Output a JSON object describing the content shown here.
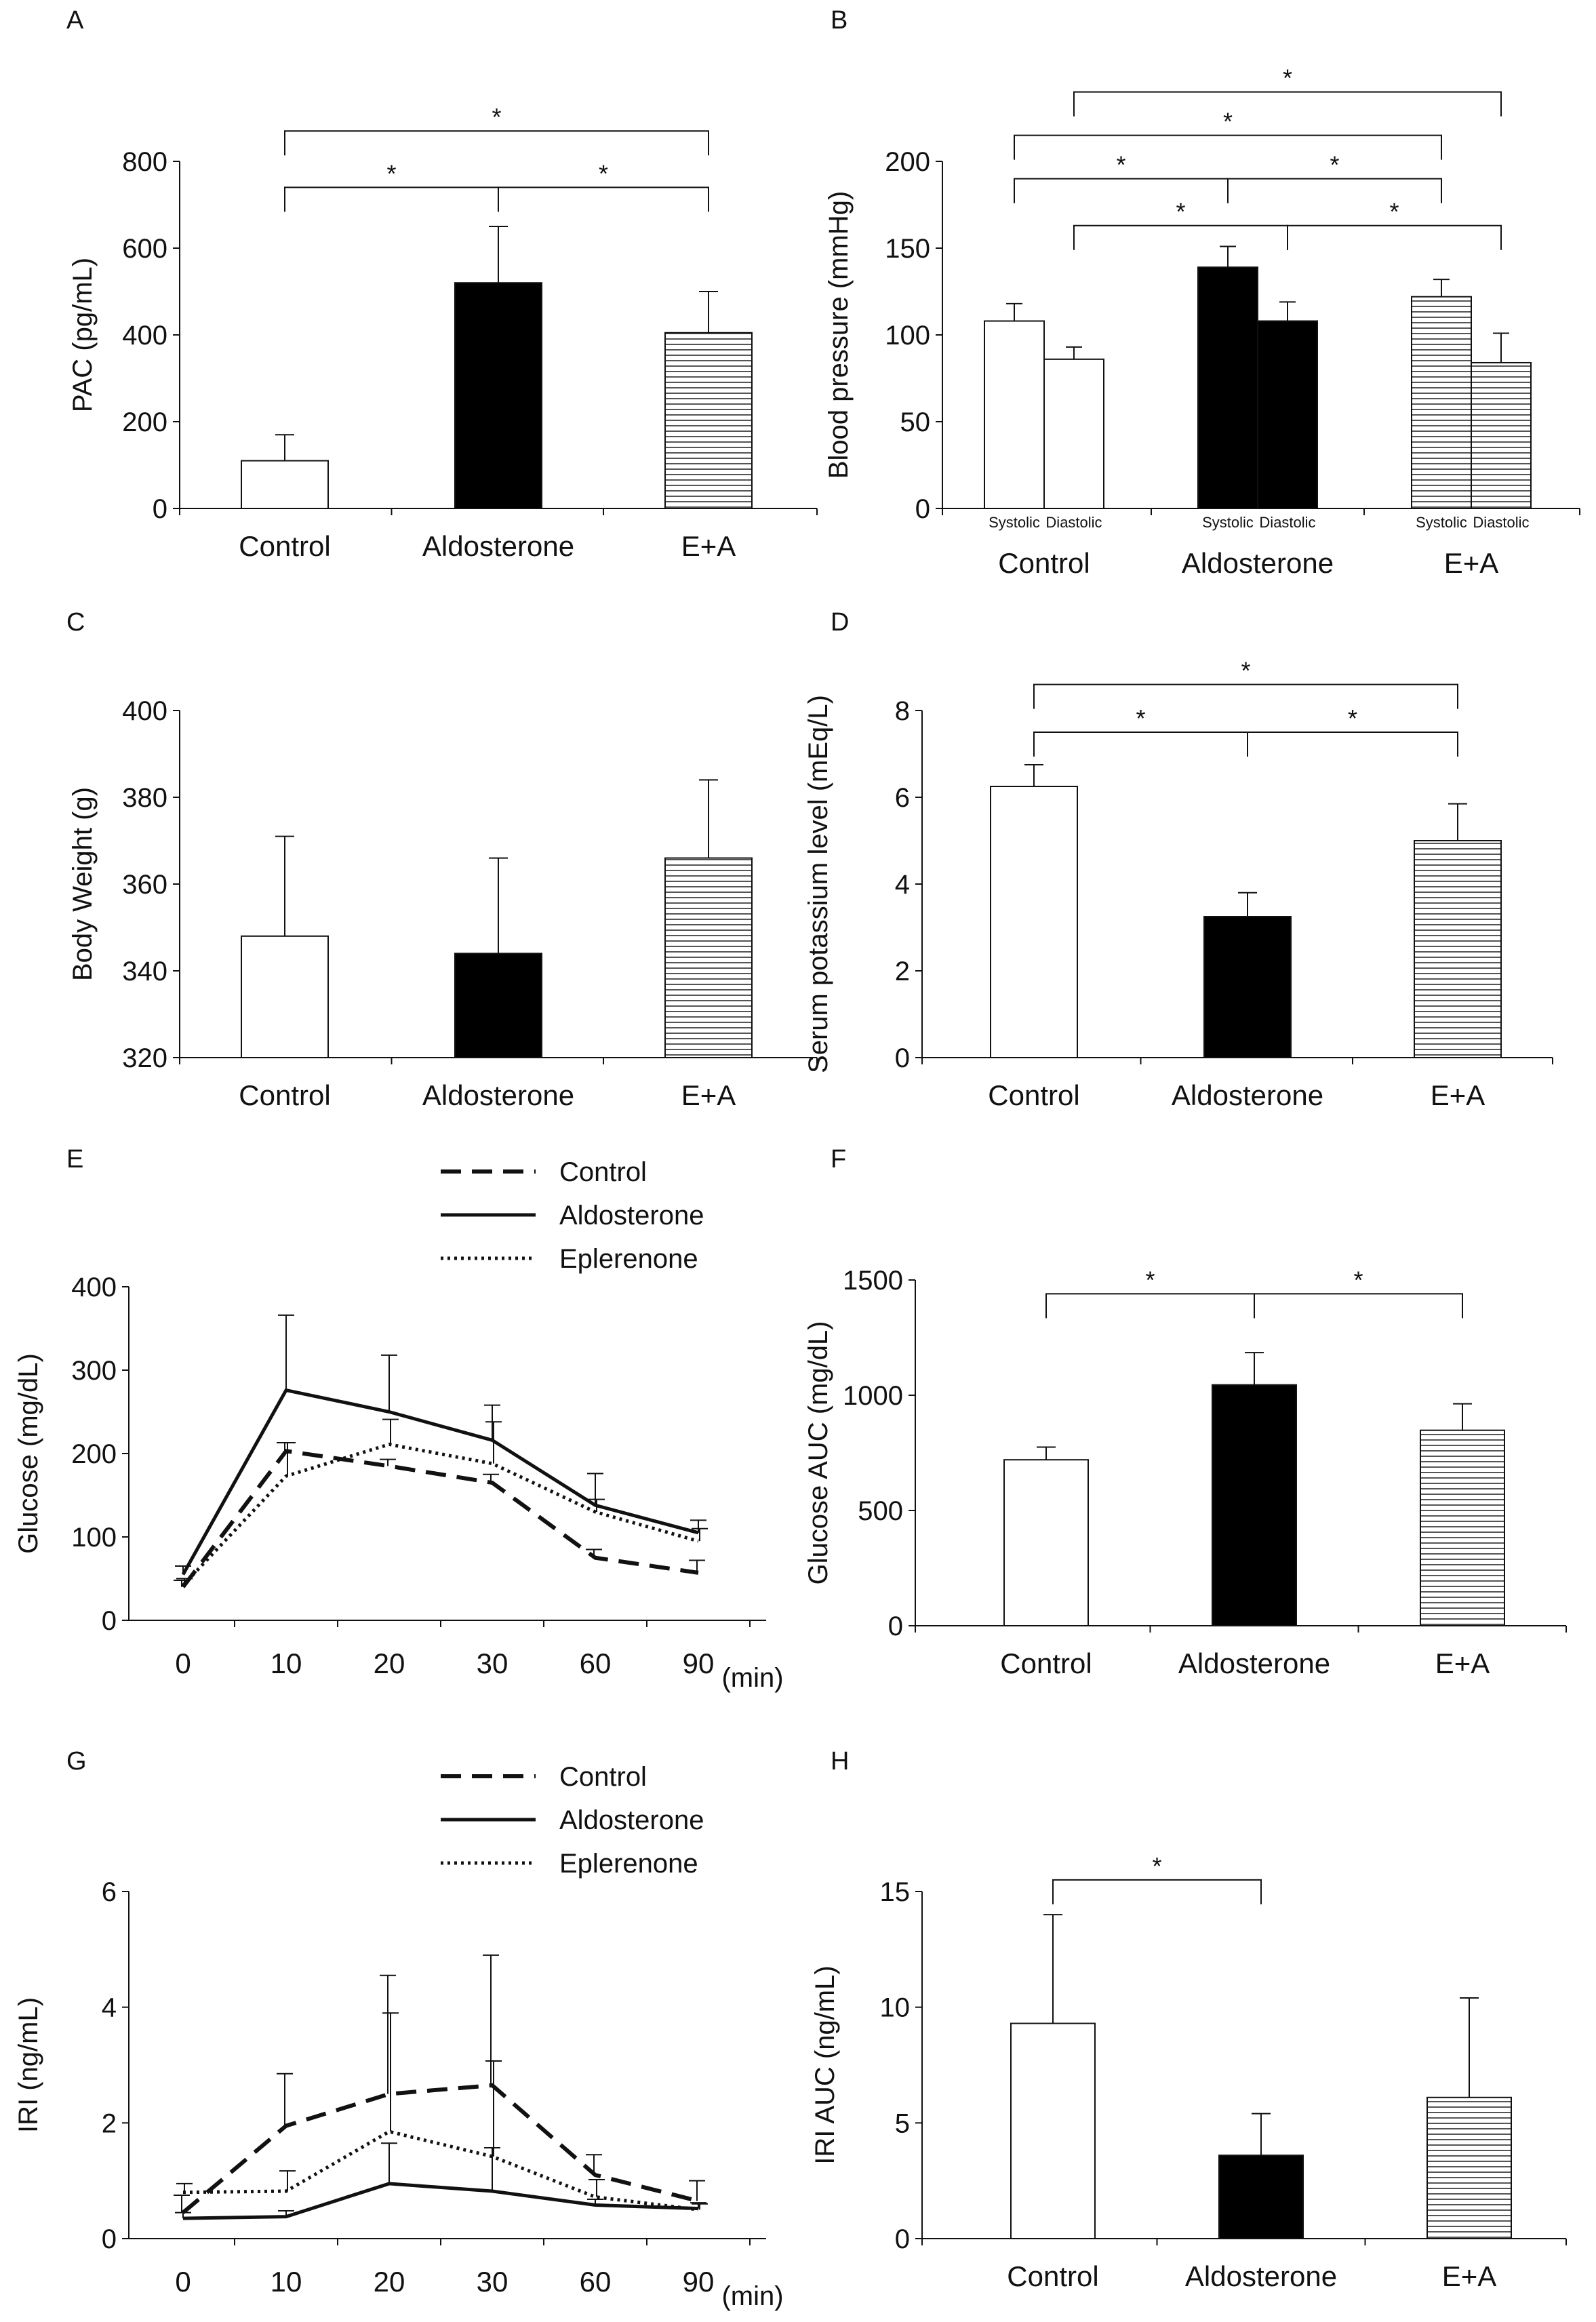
{
  "figure": {
    "colors": {
      "ink": "#111111",
      "white": "#ffffff",
      "black": "#000000",
      "hatch": "#555555"
    }
  },
  "chart_data": [
    {
      "id": "A",
      "panel_label": "A",
      "type": "bar",
      "ylabel": "PAC (pg/mL)",
      "ylim": [
        0,
        800
      ],
      "yticks": [
        0,
        200,
        400,
        600,
        800
      ],
      "categories": [
        "Control",
        "Aldosterone",
        "E+A"
      ],
      "values": [
        110,
        520,
        405
      ],
      "errors": [
        60,
        130,
        95
      ],
      "fills": [
        "white",
        "black",
        "hatch"
      ],
      "significance": [
        {
          "from": 0,
          "to": 1,
          "y": 740,
          "label": "*"
        },
        {
          "from": 1,
          "to": 2,
          "y": 740,
          "label": "*"
        },
        {
          "from": 0,
          "to": 2,
          "y": 870,
          "label": "*"
        }
      ]
    },
    {
      "id": "B",
      "panel_label": "B",
      "type": "bar",
      "ylabel": "Blood pressure (mmHg)",
      "ylim": [
        0,
        200
      ],
      "yticks": [
        0,
        50,
        100,
        150,
        200
      ],
      "categories": [
        "Control",
        "Aldosterone",
        "E+A"
      ],
      "sub_categories": [
        "Systolic",
        "Diastolic"
      ],
      "series": [
        {
          "name": "Systolic",
          "values": [
            108,
            139,
            122
          ],
          "errors": [
            10,
            12,
            10
          ]
        },
        {
          "name": "Diastolic",
          "values": [
            86,
            108,
            84
          ],
          "errors": [
            7,
            11,
            17
          ]
        }
      ],
      "fills": [
        "white",
        "black",
        "hatch"
      ],
      "significance": [
        {
          "from": "0-0",
          "to": "1-0",
          "y": 190,
          "label": "*"
        },
        {
          "from": "1-0",
          "to": "2-0",
          "y": 190,
          "label": "*"
        },
        {
          "from": "0-1",
          "to": "1-1",
          "y": 163,
          "label": "*"
        },
        {
          "from": "1-1",
          "to": "2-1",
          "y": 163,
          "label": "*"
        },
        {
          "from": "0-0",
          "to": "2-0",
          "y": 215,
          "label": "*"
        },
        {
          "from": "0-1",
          "to": "2-1",
          "y": 240,
          "label": "*"
        }
      ]
    },
    {
      "id": "C",
      "panel_label": "C",
      "type": "bar",
      "ylabel": "Body Weight (g)",
      "ylim": [
        320,
        400
      ],
      "yticks": [
        320,
        340,
        360,
        380,
        400
      ],
      "categories": [
        "Control",
        "Aldosterone",
        "E+A"
      ],
      "values": [
        348,
        344,
        366
      ],
      "errors": [
        23,
        22,
        18
      ],
      "fills": [
        "white",
        "black",
        "hatch"
      ],
      "significance": []
    },
    {
      "id": "D",
      "panel_label": "D",
      "type": "bar",
      "ylabel": "Serum potassium level (mEq/L)",
      "ylim": [
        0,
        8
      ],
      "yticks": [
        0,
        2,
        4,
        6,
        8
      ],
      "categories": [
        "Control",
        "Aldosterone",
        "E+A"
      ],
      "values": [
        6.25,
        3.25,
        5.0
      ],
      "errors": [
        0.5,
        0.55,
        0.85
      ],
      "fills": [
        "white",
        "black",
        "hatch"
      ],
      "significance": [
        {
          "from": 0,
          "to": 1,
          "y": 7.5,
          "label": "*"
        },
        {
          "from": 1,
          "to": 2,
          "y": 7.5,
          "label": "*"
        },
        {
          "from": 0,
          "to": 2,
          "y": 8.6,
          "label": "*"
        }
      ]
    },
    {
      "id": "E",
      "panel_label": "E",
      "type": "line",
      "ylabel": "Glucose (mg/dL)",
      "ylim": [
        0,
        400
      ],
      "yticks": [
        0,
        100,
        200,
        300,
        400
      ],
      "x": [
        "0",
        "10",
        "20",
        "30",
        "60",
        "90"
      ],
      "xunit": "(min)",
      "series": [
        {
          "name": "Control",
          "style": "dashed",
          "values": [
            40,
            203,
            185,
            165,
            75,
            57
          ],
          "errors": [
            8,
            10,
            8,
            10,
            10,
            15
          ]
        },
        {
          "name": "Aldosterone",
          "style": "solid",
          "values": [
            55,
            276,
            250,
            216,
            138,
            105
          ],
          "errors": [
            10,
            90,
            68,
            42,
            38,
            15
          ]
        },
        {
          "name": "Eplerenone",
          "style": "dotted",
          "values": [
            42,
            173,
            211,
            188,
            130,
            95
          ],
          "errors": [
            8,
            40,
            30,
            50,
            15,
            15
          ]
        }
      ]
    },
    {
      "id": "F",
      "panel_label": "F",
      "type": "bar",
      "ylabel": "Glucose AUC (mg/dL)",
      "ylim": [
        0,
        1500
      ],
      "yticks": [
        0,
        500,
        1000,
        1500
      ],
      "categories": [
        "Control",
        "Aldosterone",
        "E+A"
      ],
      "values": [
        720,
        1045,
        848
      ],
      "errors": [
        55,
        140,
        115
      ],
      "fills": [
        "white",
        "black",
        "hatch"
      ],
      "significance": [
        {
          "from": 0,
          "to": 1,
          "y": 1440,
          "label": "*"
        },
        {
          "from": 1,
          "to": 2,
          "y": 1440,
          "label": "*"
        }
      ]
    },
    {
      "id": "G",
      "panel_label": "G",
      "type": "line",
      "ylabel": "IRI (ng/mL)",
      "ylim": [
        0,
        6
      ],
      "yticks": [
        0,
        2,
        4,
        6
      ],
      "x": [
        "0",
        "10",
        "20",
        "30",
        "60",
        "90"
      ],
      "xunit": "(min)",
      "series": [
        {
          "name": "Control",
          "style": "dashed",
          "values": [
            0.45,
            1.95,
            2.5,
            2.65,
            1.1,
            0.65
          ],
          "errors": [
            0.3,
            0.9,
            2.05,
            2.25,
            0.35,
            0.35
          ]
        },
        {
          "name": "Aldosterone",
          "style": "solid",
          "values": [
            0.35,
            0.38,
            0.95,
            0.82,
            0.58,
            0.52
          ],
          "errors": [
            0.1,
            0.1,
            0.7,
            0.75,
            0.1,
            0.1
          ]
        },
        {
          "name": "Eplerenone",
          "style": "dotted",
          "values": [
            0.8,
            0.82,
            1.85,
            1.42,
            0.72,
            0.5
          ],
          "errors": [
            0.15,
            0.35,
            2.05,
            1.65,
            0.3,
            0.1
          ]
        }
      ]
    },
    {
      "id": "H",
      "panel_label": "H",
      "type": "bar",
      "ylabel": "IRI AUC (ng/mL)",
      "ylim": [
        0,
        15
      ],
      "yticks": [
        0,
        5,
        10,
        15
      ],
      "categories": [
        "Control",
        "Aldosterone",
        "E+A"
      ],
      "values": [
        9.3,
        3.6,
        6.1
      ],
      "errors": [
        4.7,
        1.8,
        4.3
      ],
      "fills": [
        "white",
        "black",
        "hatch"
      ],
      "significance": [
        {
          "from": 0,
          "to": 1,
          "y": 15.5,
          "label": "*"
        }
      ]
    }
  ]
}
